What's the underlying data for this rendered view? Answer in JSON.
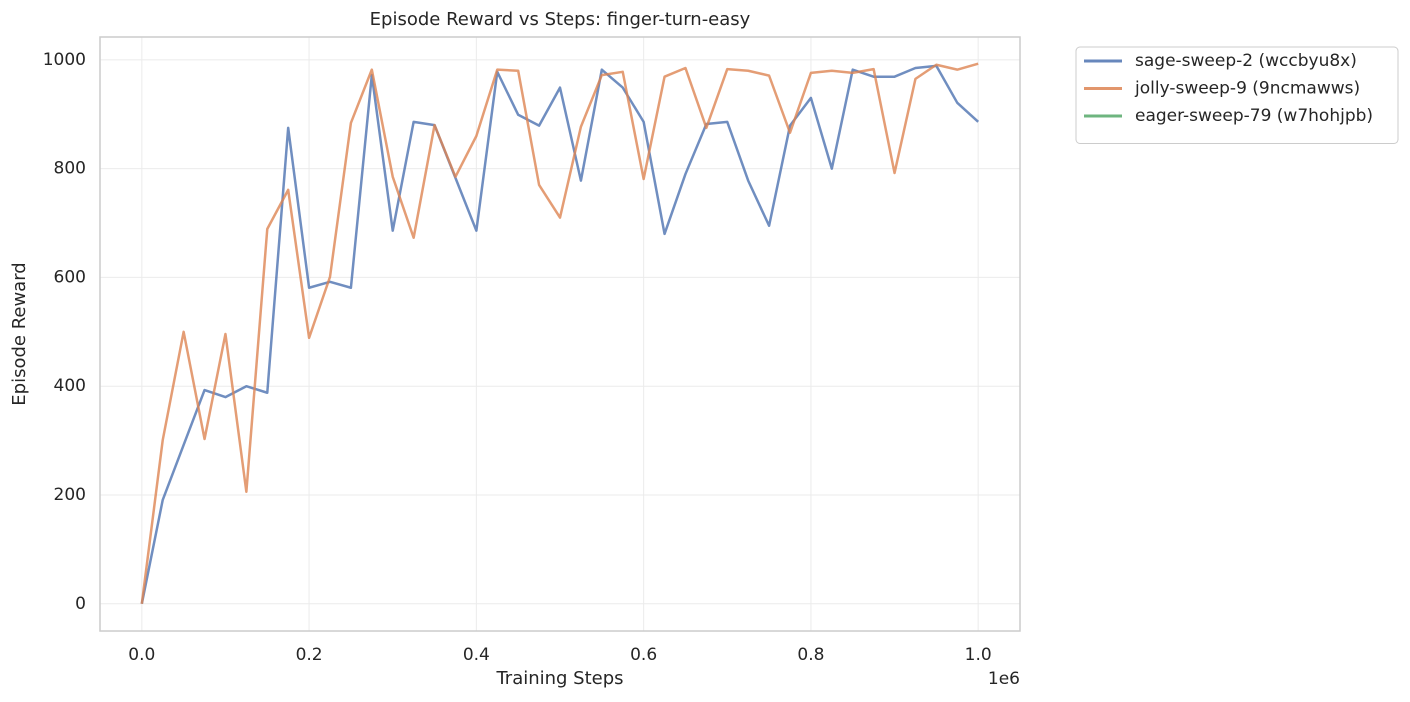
{
  "chart_data": {
    "type": "line",
    "title": "Episode Reward vs Steps: finger-turn-easy",
    "x_label": "Training Steps",
    "y_label": "Episode Reward",
    "x_offset_label": "1e6",
    "x": [
      0,
      25000,
      50000,
      75000,
      100000,
      125000,
      150000,
      175000,
      200000,
      225000,
      250000,
      275000,
      300000,
      325000,
      350000,
      375000,
      400000,
      425000,
      450000,
      475000,
      500000,
      525000,
      550000,
      575000,
      600000,
      625000,
      650000,
      675000,
      700000,
      725000,
      750000,
      775000,
      800000,
      825000,
      850000,
      875000,
      900000,
      925000,
      950000,
      975000,
      1000000
    ],
    "series": [
      {
        "name": "sage-sweep-2 (wccbyu8x)",
        "color": "#4c72b0",
        "values": [
          0,
          191,
          292,
          393,
          380,
          400,
          388,
          875,
          581,
          592,
          581,
          972,
          686,
          886,
          880,
          783,
          686,
          978,
          899,
          879,
          949,
          778,
          982,
          949,
          886,
          680,
          790,
          882,
          886,
          778,
          695,
          879,
          930,
          800,
          982,
          969,
          969,
          985,
          989,
          921,
          886
        ]
      },
      {
        "name": "jolly-sweep-9 (9ncmawws)",
        "color": "#dd8452",
        "values": [
          0,
          301,
          500,
          303,
          496,
          206,
          689,
          761,
          489,
          601,
          884,
          982,
          785,
          673,
          880,
          785,
          860,
          982,
          980,
          770,
          710,
          877,
          972,
          978,
          781,
          969,
          985,
          875,
          983,
          980,
          971,
          866,
          976,
          980,
          976,
          983,
          792,
          965,
          991,
          982,
          993
        ]
      },
      {
        "name": "eager-sweep-79 (w7hohjpb)",
        "color": "#55a868",
        "values": [
          null,
          null,
          null,
          null,
          null,
          null,
          null,
          null,
          null,
          null,
          null,
          null,
          null,
          null,
          null,
          null,
          null,
          null,
          null,
          null,
          null,
          null,
          null,
          null,
          null,
          null,
          null,
          null,
          null,
          null,
          null,
          null,
          null,
          null,
          null,
          null,
          null,
          null,
          null,
          null,
          null
        ]
      }
    ],
    "xlim": [
      -50000,
      1050000
    ],
    "xticks": [
      {
        "value": 0,
        "label": "0.0"
      },
      {
        "value": 200000,
        "label": "0.2"
      },
      {
        "value": 400000,
        "label": "0.4"
      },
      {
        "value": 600000,
        "label": "0.6"
      },
      {
        "value": 800000,
        "label": "0.8"
      },
      {
        "value": 1000000,
        "label": "1.0"
      }
    ],
    "ylim": [
      -50,
      1042
    ],
    "yticks": [
      0,
      200,
      400,
      600,
      800,
      1000
    ],
    "grid": true,
    "legend": "outside upper right"
  }
}
